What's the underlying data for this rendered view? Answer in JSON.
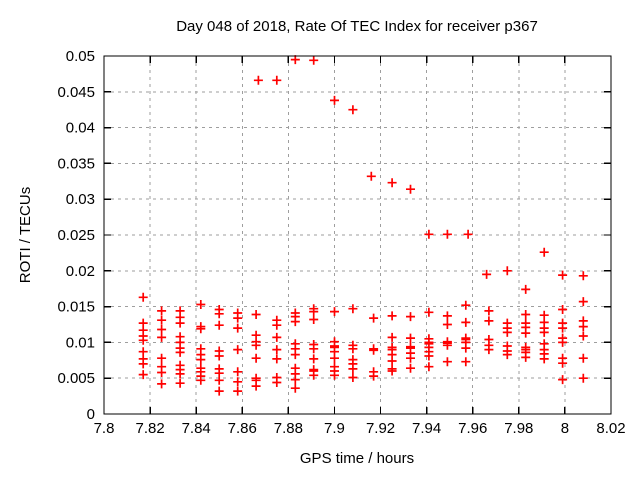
{
  "page": {
    "background_color": "#ffffff",
    "text_color": "#000000",
    "grid_color": "#9e9e9e",
    "border_color": "#000000"
  },
  "chart_data": {
    "type": "scatter",
    "title": "Day 048 of 2018, Rate Of TEC Index for receiver p367",
    "xlabel": "GPS time / hours",
    "ylabel": "ROTI / TECUs",
    "xlim": [
      7.8,
      8.02
    ],
    "ylim": [
      0,
      0.05
    ],
    "x_ticks": [
      7.8,
      7.82,
      7.84,
      7.86,
      7.88,
      7.9,
      7.92,
      7.94,
      7.96,
      7.98,
      8,
      8.02
    ],
    "x_tick_labels": [
      "7.8",
      "7.82",
      "7.84",
      "7.86",
      "7.88",
      "7.9",
      "7.92",
      "7.94",
      "7.96",
      "7.98",
      "8",
      "8.02"
    ],
    "y_ticks": [
      0,
      0.005,
      0.01,
      0.015,
      0.02,
      0.025,
      0.03,
      0.035,
      0.04,
      0.045,
      0.05
    ],
    "y_tick_labels": [
      "0",
      "0.005",
      "0.01",
      "0.015",
      "0.02",
      "0.025",
      "0.03",
      "0.035",
      "0.04",
      "0.045",
      "0.05"
    ],
    "grid": true,
    "grid_style": "dashed",
    "legend": "none",
    "marker": "plus",
    "marker_color": "#ff0000",
    "series": [
      {
        "name": "ROTI",
        "points": [
          [
            7.883,
            0.0495
          ],
          [
            7.891,
            0.0494
          ],
          [
            7.867,
            0.0466
          ],
          [
            7.875,
            0.0466
          ],
          [
            7.9,
            0.0438
          ],
          [
            7.908,
            0.0425
          ],
          [
            7.916,
            0.0332
          ],
          [
            7.925,
            0.0323
          ],
          [
            7.933,
            0.0314
          ],
          [
            7.941,
            0.0251
          ],
          [
            7.949,
            0.0251
          ],
          [
            7.958,
            0.0251
          ],
          [
            7.991,
            0.0226
          ],
          [
            7.966,
            0.0195
          ],
          [
            7.975,
            0.02
          ],
          [
            7.999,
            0.0194
          ],
          [
            8.008,
            0.0193
          ],
          [
            7.983,
            0.0174
          ],
          [
            8.008,
            0.0157
          ],
          [
            7.817,
            0.0163
          ],
          [
            7.817,
            0.0127
          ],
          [
            7.817,
            0.0117
          ],
          [
            7.817,
            0.0109
          ],
          [
            7.817,
            0.0103
          ],
          [
            7.817,
            0.0087
          ],
          [
            7.817,
            0.0077
          ],
          [
            7.817,
            0.007
          ],
          [
            7.817,
            0.0055
          ],
          [
            7.825,
            0.0144
          ],
          [
            7.825,
            0.0131
          ],
          [
            7.825,
            0.0118
          ],
          [
            7.825,
            0.0107
          ],
          [
            7.825,
            0.0078
          ],
          [
            7.825,
            0.0066
          ],
          [
            7.825,
            0.0058
          ],
          [
            7.825,
            0.0042
          ],
          [
            7.833,
            0.0144
          ],
          [
            7.833,
            0.0135
          ],
          [
            7.833,
            0.0127
          ],
          [
            7.833,
            0.0108
          ],
          [
            7.833,
            0.01
          ],
          [
            7.833,
            0.0092
          ],
          [
            7.833,
            0.0086
          ],
          [
            7.833,
            0.0068
          ],
          [
            7.833,
            0.0062
          ],
          [
            7.833,
            0.0056
          ],
          [
            7.833,
            0.0043
          ],
          [
            7.842,
            0.0153
          ],
          [
            7.842,
            0.0122
          ],
          [
            7.842,
            0.0119
          ],
          [
            7.842,
            0.0091
          ],
          [
            7.842,
            0.0083
          ],
          [
            7.842,
            0.0076
          ],
          [
            7.842,
            0.0064
          ],
          [
            7.842,
            0.0059
          ],
          [
            7.842,
            0.0053
          ],
          [
            7.842,
            0.0047
          ],
          [
            7.85,
            0.0146
          ],
          [
            7.85,
            0.014
          ],
          [
            7.85,
            0.0124
          ],
          [
            7.85,
            0.0088
          ],
          [
            7.85,
            0.0081
          ],
          [
            7.85,
            0.0063
          ],
          [
            7.85,
            0.0057
          ],
          [
            7.85,
            0.0047
          ],
          [
            7.85,
            0.0032
          ],
          [
            7.858,
            0.0141
          ],
          [
            7.858,
            0.0134
          ],
          [
            7.858,
            0.012
          ],
          [
            7.858,
            0.009
          ],
          [
            7.858,
            0.0059
          ],
          [
            7.858,
            0.0045
          ],
          [
            7.858,
            0.0032
          ],
          [
            7.866,
            0.0139
          ],
          [
            7.866,
            0.011
          ],
          [
            7.866,
            0.0101
          ],
          [
            7.866,
            0.0096
          ],
          [
            7.866,
            0.0078
          ],
          [
            7.866,
            0.005
          ],
          [
            7.866,
            0.0047
          ],
          [
            7.866,
            0.0039
          ],
          [
            7.875,
            0.0131
          ],
          [
            7.875,
            0.0124
          ],
          [
            7.875,
            0.0107
          ],
          [
            7.875,
            0.009
          ],
          [
            7.875,
            0.0077
          ],
          [
            7.875,
            0.0051
          ],
          [
            7.875,
            0.0044
          ],
          [
            7.883,
            0.0141
          ],
          [
            7.883,
            0.0136
          ],
          [
            7.883,
            0.0129
          ],
          [
            7.883,
            0.0098
          ],
          [
            7.883,
            0.0091
          ],
          [
            7.883,
            0.0083
          ],
          [
            7.883,
            0.0064
          ],
          [
            7.883,
            0.0056
          ],
          [
            7.883,
            0.0048
          ],
          [
            7.883,
            0.0036
          ],
          [
            7.891,
            0.0147
          ],
          [
            7.891,
            0.0143
          ],
          [
            7.891,
            0.0132
          ],
          [
            7.891,
            0.0097
          ],
          [
            7.891,
            0.0091
          ],
          [
            7.891,
            0.0077
          ],
          [
            7.891,
            0.0062
          ],
          [
            7.891,
            0.006
          ],
          [
            7.891,
            0.0054
          ],
          [
            7.9,
            0.0143
          ],
          [
            7.9,
            0.0101
          ],
          [
            7.9,
            0.0095
          ],
          [
            7.9,
            0.0093
          ],
          [
            7.9,
            0.0087
          ],
          [
            7.9,
            0.0078
          ],
          [
            7.9,
            0.0066
          ],
          [
            7.9,
            0.006
          ],
          [
            7.9,
            0.0054
          ],
          [
            7.908,
            0.0147
          ],
          [
            7.908,
            0.0096
          ],
          [
            7.908,
            0.0091
          ],
          [
            7.908,
            0.0076
          ],
          [
            7.908,
            0.007
          ],
          [
            7.908,
            0.0063
          ],
          [
            7.908,
            0.0051
          ],
          [
            7.917,
            0.0134
          ],
          [
            7.917,
            0.0091
          ],
          [
            7.917,
            0.0089
          ],
          [
            7.917,
            0.0059
          ],
          [
            7.917,
            0.0053
          ],
          [
            7.925,
            0.0137
          ],
          [
            7.925,
            0.0107
          ],
          [
            7.925,
            0.0093
          ],
          [
            7.925,
            0.009
          ],
          [
            7.925,
            0.0083
          ],
          [
            7.925,
            0.0074
          ],
          [
            7.925,
            0.0063
          ],
          [
            7.925,
            0.006
          ],
          [
            7.933,
            0.0136
          ],
          [
            7.933,
            0.0106
          ],
          [
            7.933,
            0.0094
          ],
          [
            7.933,
            0.0092
          ],
          [
            7.933,
            0.0085
          ],
          [
            7.933,
            0.0078
          ],
          [
            7.933,
            0.0064
          ],
          [
            7.941,
            0.0142
          ],
          [
            7.941,
            0.0105
          ],
          [
            7.941,
            0.01
          ],
          [
            7.941,
            0.0098
          ],
          [
            7.941,
            0.0093
          ],
          [
            7.941,
            0.0087
          ],
          [
            7.941,
            0.0081
          ],
          [
            7.941,
            0.0066
          ],
          [
            7.949,
            0.0137
          ],
          [
            7.949,
            0.0125
          ],
          [
            7.949,
            0.0101
          ],
          [
            7.949,
            0.0099
          ],
          [
            7.949,
            0.0096
          ],
          [
            7.949,
            0.0073
          ],
          [
            7.957,
            0.0152
          ],
          [
            7.957,
            0.0128
          ],
          [
            7.957,
            0.0106
          ],
          [
            7.957,
            0.0104
          ],
          [
            7.957,
            0.01
          ],
          [
            7.957,
            0.0092
          ],
          [
            7.957,
            0.0073
          ],
          [
            7.967,
            0.0144
          ],
          [
            7.967,
            0.013
          ],
          [
            7.967,
            0.0104
          ],
          [
            7.967,
            0.0096
          ],
          [
            7.967,
            0.009
          ],
          [
            7.975,
            0.0127
          ],
          [
            7.975,
            0.012
          ],
          [
            7.975,
            0.0114
          ],
          [
            7.975,
            0.0095
          ],
          [
            7.975,
            0.0088
          ],
          [
            7.975,
            0.0083
          ],
          [
            7.983,
            0.0139
          ],
          [
            7.983,
            0.0127
          ],
          [
            7.983,
            0.0121
          ],
          [
            7.983,
            0.0113
          ],
          [
            7.983,
            0.0093
          ],
          [
            7.983,
            0.009
          ],
          [
            7.983,
            0.0086
          ],
          [
            7.983,
            0.0079
          ],
          [
            7.991,
            0.0138
          ],
          [
            7.991,
            0.0128
          ],
          [
            7.991,
            0.012
          ],
          [
            7.991,
            0.0114
          ],
          [
            7.991,
            0.0098
          ],
          [
            7.991,
            0.009
          ],
          [
            7.991,
            0.0084
          ],
          [
            7.991,
            0.0077
          ],
          [
            7.999,
            0.0146
          ],
          [
            7.999,
            0.0127
          ],
          [
            7.999,
            0.012
          ],
          [
            7.999,
            0.0106
          ],
          [
            7.999,
            0.01
          ],
          [
            7.999,
            0.0078
          ],
          [
            7.999,
            0.0071
          ],
          [
            7.999,
            0.0048
          ],
          [
            8.008,
            0.013
          ],
          [
            8.008,
            0.0122
          ],
          [
            8.008,
            0.0109
          ],
          [
            8.008,
            0.0078
          ],
          [
            8.008,
            0.005
          ]
        ]
      }
    ]
  }
}
